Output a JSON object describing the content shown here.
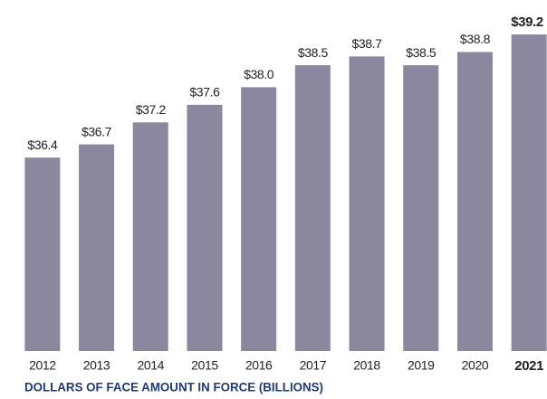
{
  "chart_data": {
    "type": "bar",
    "title": "DOLLARS OF FACE AMOUNT IN FORCE (BILLIONS)",
    "categories": [
      "2012",
      "2013",
      "2014",
      "2015",
      "2016",
      "2017",
      "2018",
      "2019",
      "2020",
      "2021"
    ],
    "values": [
      36.4,
      36.7,
      37.2,
      37.6,
      38.0,
      38.5,
      38.7,
      38.5,
      38.8,
      39.2
    ],
    "value_labels": [
      "$36.4",
      "$36.7",
      "$37.2",
      "$37.6",
      "$38.0",
      "$38.5",
      "$38.7",
      "$38.5",
      "$38.8",
      "$39.2"
    ],
    "color": "#8b879f",
    "ylim": [
      32,
      39.5
    ],
    "highlight_category": "2021"
  }
}
